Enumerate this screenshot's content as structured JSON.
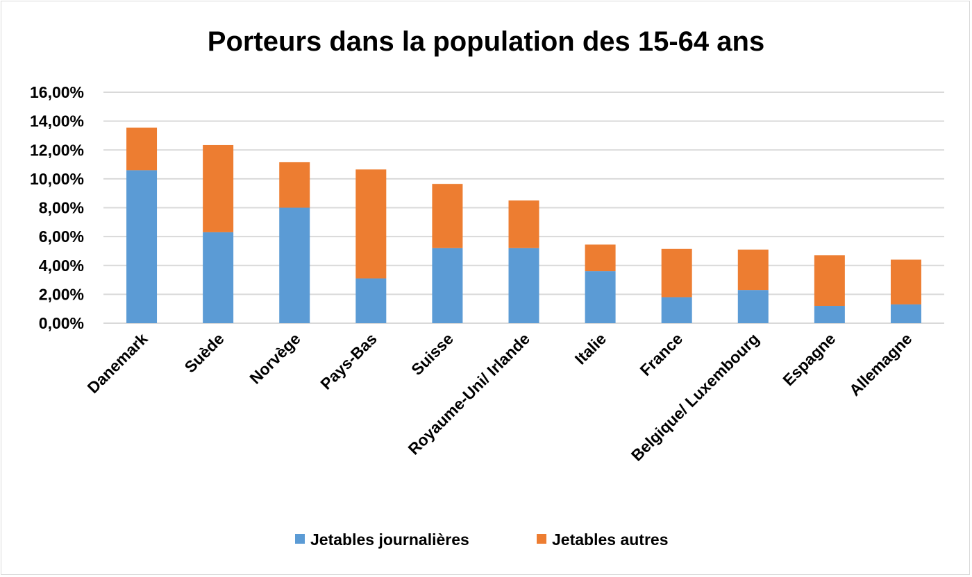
{
  "chart_data": {
    "type": "bar",
    "stacked": true,
    "title": "Porteurs dans la population des 15-64 ans",
    "xlabel": "",
    "ylabel": "",
    "ylim": [
      0,
      16
    ],
    "yticks": [
      "0,00%",
      "2,00%",
      "4,00%",
      "6,00%",
      "8,00%",
      "10,00%",
      "12,00%",
      "14,00%",
      "16,00%"
    ],
    "grid": true,
    "legend_position": "bottom",
    "categories": [
      "Danemark",
      "Suède",
      "Norvège",
      "Pays-Bas",
      "Suisse",
      "Royaume-Uni/ Irlande",
      "Italie",
      "France",
      "Belgique/ Luxembourg",
      "Espagne",
      "Allemagne"
    ],
    "series": [
      {
        "name": "Jetables journalières",
        "color": "#5b9bd5",
        "values": [
          10.6,
          6.3,
          8.0,
          3.1,
          5.2,
          5.2,
          3.6,
          1.8,
          2.3,
          1.2,
          1.3
        ]
      },
      {
        "name": "Jetables autres",
        "color": "#ed7d31",
        "values": [
          2.95,
          6.05,
          3.15,
          7.55,
          4.45,
          3.3,
          1.85,
          3.35,
          2.8,
          3.5,
          3.1
        ]
      }
    ]
  }
}
